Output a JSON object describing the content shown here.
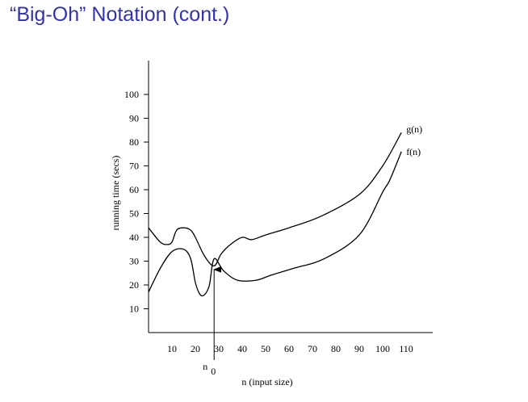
{
  "slide": {
    "title": "“Big-Oh” Notation (cont.)"
  },
  "chart_data": {
    "type": "line",
    "title": "",
    "xlabel": "n (input size)",
    "ylabel": "running time (secs)",
    "xlim": [
      0,
      120
    ],
    "ylim": [
      0,
      105
    ],
    "x_ticks": [
      10,
      20,
      30,
      40,
      50,
      60,
      70,
      80,
      90,
      100,
      110
    ],
    "y_ticks": [
      10,
      20,
      30,
      40,
      50,
      60,
      70,
      80,
      90,
      100
    ],
    "grid": false,
    "series": [
      {
        "name": "g(n)",
        "x": [
          0,
          5,
          8,
          10,
          12,
          15,
          18,
          20,
          24,
          28,
          31,
          35,
          40,
          44,
          50,
          60,
          74,
          90,
          100,
          108
        ],
        "y": [
          44,
          38,
          37,
          38,
          43,
          44,
          43,
          40,
          32,
          28,
          33,
          37,
          40,
          39,
          41,
          44,
          49,
          58,
          70,
          84
        ]
      },
      {
        "name": "f(n)",
        "x": [
          0,
          5,
          10,
          15,
          18,
          20,
          22,
          24,
          26,
          28,
          32,
          38,
          46,
          52,
          62,
          75,
          90,
          100,
          103,
          108
        ],
        "y": [
          17,
          27,
          34,
          35,
          31,
          21,
          16,
          16,
          20,
          31,
          26,
          22,
          22,
          24,
          27,
          31,
          41,
          59,
          64,
          76
        ]
      }
    ],
    "annotations": [
      {
        "text": "n",
        "subscript": "0",
        "x": 28
      }
    ],
    "legend": "inline curve labels at right end"
  }
}
